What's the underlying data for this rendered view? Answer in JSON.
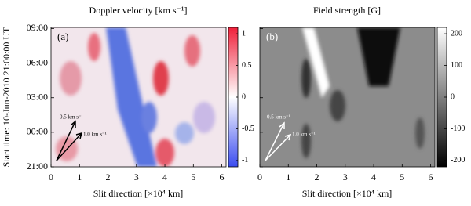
{
  "chart_data": [
    {
      "type": "image",
      "title": "Doppler velocity [km s⁻¹]",
      "panel_label": "(a)",
      "x_label": "Slit direction [×10⁴ km]",
      "y_label": "Start time: 10-Jun-2010 21:00:00 UT",
      "xlim": [
        0,
        6.15
      ],
      "xticks": [
        0,
        1,
        2,
        3,
        4,
        5,
        6
      ],
      "ylim": [
        0,
        12.1
      ],
      "yticks": [
        {
          "value": 0,
          "label": "21:00"
        },
        {
          "value": 3,
          "label": "00:00"
        },
        {
          "value": 6,
          "label": "03:00"
        },
        {
          "value": 9,
          "label": "06:00"
        },
        {
          "value": 12,
          "label": "09:00"
        }
      ],
      "clim": [
        -1.1,
        1.1
      ],
      "cticks": [
        -1,
        -0.5,
        0,
        0.5,
        1
      ],
      "annotations": [
        "0.5 km s⁻¹",
        "1.0 km s⁻¹"
      ]
    },
    {
      "type": "image",
      "title": "Field strength [G]",
      "panel_label": "(b)",
      "x_label": "Slit direction [×10⁴ km]",
      "xlim": [
        0,
        6.15
      ],
      "xticks": [
        0,
        1,
        2,
        3,
        4,
        5,
        6
      ],
      "ylim": [
        0,
        12.1
      ],
      "yticks": [
        0,
        3,
        6,
        9,
        12
      ],
      "clim": [
        -220,
        220
      ],
      "cticks": [
        -200,
        -100,
        0,
        100,
        200
      ],
      "annotations": [
        "0.5 km s⁻¹",
        "1.0 km s⁻¹"
      ]
    }
  ]
}
